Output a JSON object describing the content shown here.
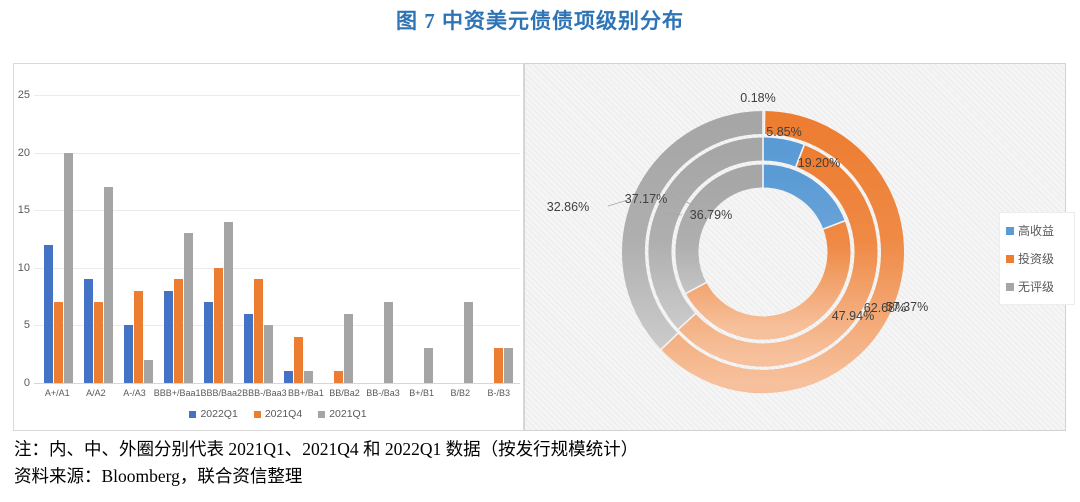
{
  "title": "图 7 中资美元债债项级别分布",
  "title_color": "#2E74B5",
  "notes": {
    "note": "注：内、中、外圈分别代表 2021Q1、2021Q4 和 2022Q1 数据（按发行规模统计）",
    "source": "资料来源：Bloomberg，联合资信整理"
  },
  "colors": {
    "bar_blue": "#4472C4",
    "bar_orange": "#ED7D31",
    "bar_gray": "#A5A5A5",
    "donut_blue": "#5B9BD5",
    "donut_orange": "#ED7D31",
    "donut_gray": "#A6A6A6",
    "axis_text": "#595959",
    "label_text": "#404040"
  },
  "chart_data": [
    {
      "type": "bar",
      "categories": [
        "A+/A1",
        "A/A2",
        "A-/A3",
        "BBB+/Baa1",
        "BBB/Baa2",
        "BBB-/Baa3",
        "BB+/Ba1",
        "BB/Ba2",
        "BB-/Ba3",
        "B+/B1",
        "B/B2",
        "B-/B3"
      ],
      "series": [
        {
          "name": "2022Q1",
          "color": "#4472C4",
          "values": [
            12,
            9,
            5,
            8,
            7,
            6,
            1,
            0,
            0,
            0,
            0,
            0
          ]
        },
        {
          "name": "2021Q4",
          "color": "#ED7D31",
          "values": [
            7,
            7,
            8,
            9,
            10,
            9,
            4,
            1,
            0,
            0,
            0,
            3
          ]
        },
        {
          "name": "2021Q1",
          "color": "#A5A5A5",
          "values": [
            20,
            17,
            2,
            13,
            14,
            5,
            1,
            6,
            7,
            3,
            7,
            3
          ]
        }
      ],
      "ylim": [
        0,
        25
      ],
      "yticks": [
        0,
        5,
        10,
        15,
        20,
        25
      ],
      "grid": true,
      "legend_position": "bottom"
    },
    {
      "type": "pie",
      "subtype": "multi-ring-donut",
      "segments": [
        "高收益",
        "投资级",
        "无评级"
      ],
      "segment_colors": [
        "#5B9BD5",
        "#ED7D31",
        "#A6A6A6"
      ],
      "rings": [
        {
          "name": "2021Q1",
          "position": "inner",
          "values": [
            19.2,
            47.94,
            32.86
          ]
        },
        {
          "name": "2021Q4",
          "position": "middle",
          "values": [
            5.85,
            57.37,
            36.79
          ]
        },
        {
          "name": "2022Q1",
          "position": "outer",
          "values": [
            0.18,
            62.68,
            37.17
          ]
        }
      ],
      "label_format": "percent-2dp",
      "legend_position": "right"
    }
  ]
}
